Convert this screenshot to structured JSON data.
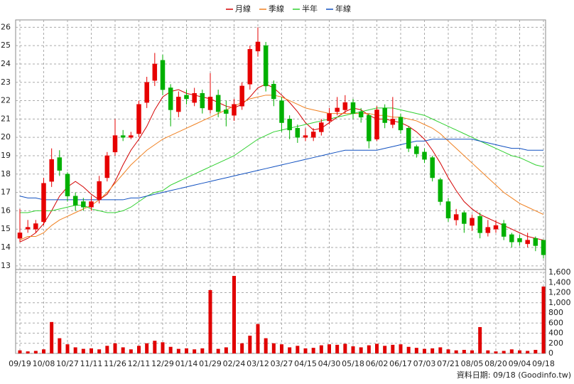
{
  "chart_data": [
    {
      "type": "candlestick",
      "categories": [
        "09/19",
        null,
        null,
        "10/08",
        null,
        null,
        "10/27",
        null,
        null,
        "11/11",
        null,
        null,
        "11/26",
        null,
        null,
        "12/11",
        null,
        null,
        "12/29",
        null,
        null,
        "01/14",
        null,
        null,
        "01/29",
        null,
        null,
        "02/24",
        null,
        null,
        "03/12",
        null,
        null,
        "03/27",
        null,
        null,
        "04/15",
        null,
        null,
        "04/30",
        null,
        null,
        "05/18",
        null,
        null,
        "06/02",
        null,
        null,
        "06/17",
        null,
        null,
        "07/03",
        null,
        null,
        "07/21",
        null,
        null,
        "08/05",
        null,
        null,
        "08/20",
        null,
        null,
        "09/04",
        null,
        null,
        "09/18"
      ],
      "open": [
        14.5,
        15.0,
        15.0,
        15.4,
        17.6,
        18.9,
        18.0,
        16.8,
        16.5,
        16.2,
        16.6,
        17.8,
        19.2,
        20.1,
        20.0,
        20.2,
        21.9,
        23.1,
        24.2,
        22.7,
        21.4,
        22.3,
        21.9,
        22.4,
        21.5,
        22.3,
        21.5,
        21.2,
        21.7,
        22.9,
        24.7,
        25.0,
        22.9,
        22.0,
        21.0,
        20.5,
        20.0,
        20.0,
        20.3,
        20.9,
        21.4,
        21.5,
        21.9,
        21.4,
        21.2,
        19.9,
        21.6,
        20.7,
        21.1,
        20.5,
        19.5,
        19.2,
        18.9,
        17.7,
        16.5,
        15.5,
        15.9,
        15.2,
        15.7,
        14.8,
        15.0,
        15.3,
        14.7,
        14.5,
        14.2,
        14.5,
        14.4
      ],
      "high": [
        16.1,
        15.5,
        15.5,
        17.8,
        19.4,
        19.3,
        18.1,
        17.0,
        16.7,
        16.8,
        17.9,
        19.2,
        21.0,
        20.4,
        20.3,
        22.0,
        23.3,
        24.6,
        24.5,
        22.9,
        22.5,
        22.6,
        22.7,
        22.6,
        23.5,
        22.6,
        22.0,
        22.1,
        23.0,
        25.0,
        26.0,
        25.2,
        23.1,
        22.2,
        21.2,
        20.7,
        20.5,
        20.5,
        21.0,
        21.6,
        22.2,
        22.3,
        22.1,
        21.6,
        21.3,
        21.7,
        21.8,
        22.2,
        21.3,
        20.6,
        19.6,
        19.4,
        19.0,
        17.8,
        16.7,
        16.1,
        16.0,
        15.8,
        15.9,
        15.5,
        15.5,
        15.5,
        14.8,
        14.7,
        14.8,
        14.6,
        14.4
      ],
      "low": [
        14.3,
        14.8,
        14.8,
        15.2,
        17.3,
        17.9,
        16.5,
        16.0,
        16.0,
        16.0,
        16.4,
        17.6,
        19.0,
        19.8,
        19.9,
        20.0,
        21.6,
        22.8,
        22.3,
        20.6,
        21.1,
        21.8,
        21.7,
        21.3,
        21.3,
        21.1,
        20.6,
        20.9,
        21.5,
        22.6,
        24.4,
        22.5,
        21.7,
        20.3,
        19.9,
        19.7,
        19.8,
        19.8,
        20.1,
        20.7,
        21.2,
        21.3,
        21.0,
        20.8,
        19.4,
        19.8,
        20.5,
        20.5,
        20.2,
        19.2,
        18.9,
        18.6,
        17.6,
        16.3,
        15.4,
        15.2,
        14.8,
        14.9,
        14.5,
        14.6,
        14.8,
        14.4,
        14.0,
        14.1,
        14.0,
        13.8,
        13.4
      ],
      "close": [
        14.8,
        15.1,
        15.3,
        17.5,
        18.8,
        18.2,
        16.8,
        16.3,
        16.2,
        16.5,
        17.6,
        19.0,
        20.1,
        20.0,
        20.1,
        21.8,
        23.0,
        24.0,
        22.6,
        21.5,
        22.2,
        22.1,
        22.4,
        21.6,
        22.2,
        21.4,
        21.3,
        21.8,
        22.8,
        24.8,
        25.2,
        22.8,
        22.1,
        20.8,
        20.4,
        20.0,
        20.1,
        20.3,
        20.8,
        21.3,
        21.6,
        21.9,
        21.3,
        21.1,
        19.8,
        21.5,
        20.8,
        21.0,
        20.4,
        19.4,
        19.1,
        18.8,
        17.8,
        16.5,
        15.6,
        15.8,
        15.3,
        15.6,
        14.8,
        15.1,
        15.2,
        14.6,
        14.3,
        14.3,
        14.4,
        14.1,
        13.6
      ],
      "up_color": "#e60000",
      "down_color": "#00b000",
      "series": [
        {
          "name": "月線",
          "color": "#d40000",
          "values": [
            14.3,
            14.5,
            14.8,
            15.3,
            16.0,
            16.8,
            17.3,
            17.6,
            17.3,
            16.9,
            16.6,
            16.9,
            17.6,
            18.5,
            19.3,
            19.9,
            20.6,
            21.5,
            22.2,
            22.5,
            22.6,
            22.4,
            22.3,
            22.2,
            22.1,
            21.9,
            21.7,
            21.6,
            21.8,
            22.2,
            22.7,
            22.9,
            22.7,
            22.3,
            21.9,
            21.4,
            20.8,
            20.4,
            20.5,
            20.8,
            21.1,
            21.4,
            21.6,
            21.5,
            21.2,
            21.0,
            21.0,
            20.9,
            20.8,
            20.6,
            20.3,
            19.9,
            19.3,
            18.6,
            17.8,
            17.1,
            16.5,
            16.1,
            15.8,
            15.6,
            15.4,
            15.2,
            15.0,
            14.8,
            14.6,
            14.5,
            14.4
          ]
        },
        {
          "name": "季線",
          "color": "#f08020",
          "values": [
            14.4,
            14.6,
            14.6,
            14.8,
            15.2,
            15.5,
            15.7,
            15.9,
            16.1,
            16.3,
            16.6,
            17.0,
            17.5,
            18.0,
            18.5,
            18.9,
            19.3,
            19.6,
            19.9,
            20.1,
            20.3,
            20.5,
            20.7,
            20.9,
            21.1,
            21.3,
            21.5,
            21.7,
            21.9,
            22.1,
            22.2,
            22.3,
            22.3,
            22.2,
            22.0,
            21.8,
            21.6,
            21.5,
            21.4,
            21.3,
            21.3,
            21.3,
            21.3,
            21.3,
            21.3,
            21.2,
            21.2,
            21.1,
            21.1,
            21.0,
            20.9,
            20.7,
            20.5,
            20.2,
            19.8,
            19.4,
            19.0,
            18.6,
            18.2,
            17.8,
            17.4,
            17.0,
            16.7,
            16.4,
            16.2,
            16.0,
            15.8
          ]
        },
        {
          "name": "半年",
          "color": "#30d030",
          "values": [
            15.9,
            15.9,
            16.0,
            16.0,
            16.0,
            16.1,
            16.2,
            16.3,
            16.3,
            16.1,
            16.0,
            15.9,
            15.9,
            16.0,
            16.2,
            16.5,
            16.8,
            17.0,
            17.1,
            17.4,
            17.6,
            17.8,
            18.0,
            18.2,
            18.4,
            18.6,
            18.8,
            19.0,
            19.3,
            19.6,
            19.9,
            20.1,
            20.3,
            20.4,
            20.5,
            20.6,
            20.7,
            20.8,
            20.9,
            21.0,
            21.1,
            21.2,
            21.3,
            21.4,
            21.5,
            21.6,
            21.6,
            21.6,
            21.5,
            21.4,
            21.3,
            21.2,
            21.0,
            20.8,
            20.6,
            20.4,
            20.2,
            20.0,
            19.8,
            19.6,
            19.4,
            19.2,
            19.0,
            18.9,
            18.7,
            18.5,
            18.4
          ]
        },
        {
          "name": "年線",
          "color": "#1050c0",
          "values": [
            16.8,
            16.7,
            16.7,
            16.6,
            16.6,
            16.6,
            16.6,
            16.6,
            16.6,
            16.6,
            16.6,
            16.6,
            16.6,
            16.6,
            16.7,
            16.7,
            16.8,
            16.9,
            17.0,
            17.1,
            17.2,
            17.3,
            17.4,
            17.5,
            17.6,
            17.7,
            17.8,
            17.9,
            18.0,
            18.1,
            18.2,
            18.3,
            18.4,
            18.5,
            18.6,
            18.7,
            18.8,
            18.9,
            19.0,
            19.1,
            19.2,
            19.3,
            19.3,
            19.3,
            19.3,
            19.3,
            19.4,
            19.5,
            19.6,
            19.7,
            19.8,
            19.8,
            19.9,
            19.9,
            19.9,
            19.9,
            19.9,
            19.9,
            19.8,
            19.7,
            19.6,
            19.5,
            19.4,
            19.4,
            19.3,
            19.3,
            19.3
          ]
        }
      ],
      "ylim": [
        12.8,
        26.4
      ],
      "yticks": [
        13,
        14,
        15,
        16,
        17,
        18,
        19,
        20,
        21,
        22,
        23,
        24,
        25,
        26
      ],
      "grid": true
    },
    {
      "type": "bar",
      "color": "#e00000",
      "values": [
        60,
        40,
        50,
        80,
        620,
        300,
        180,
        120,
        90,
        100,
        80,
        150,
        200,
        120,
        80,
        150,
        200,
        250,
        220,
        130,
        90,
        100,
        80,
        100,
        1250,
        90,
        120,
        1530,
        200,
        350,
        580,
        300,
        200,
        180,
        120,
        150,
        100,
        110,
        160,
        180,
        170,
        190,
        140,
        120,
        160,
        190,
        150,
        170,
        180,
        130,
        110,
        90,
        100,
        120,
        80,
        60,
        70,
        60,
        520,
        60,
        40,
        50,
        80,
        60,
        50,
        70,
        1320
      ],
      "ylim": [
        0,
        1600
      ],
      "yticks": [
        0,
        200,
        400,
        600,
        800,
        {
          "value": 1000,
          "label": "1,000"
        },
        {
          "value": 1200,
          "label": "1,200"
        },
        {
          "value": 1400,
          "label": "1,400"
        },
        {
          "value": 1600,
          "label": "1,600"
        }
      ],
      "grid": true
    }
  ],
  "source": "資料日期: 09/18  (Goodinfo.tw)"
}
